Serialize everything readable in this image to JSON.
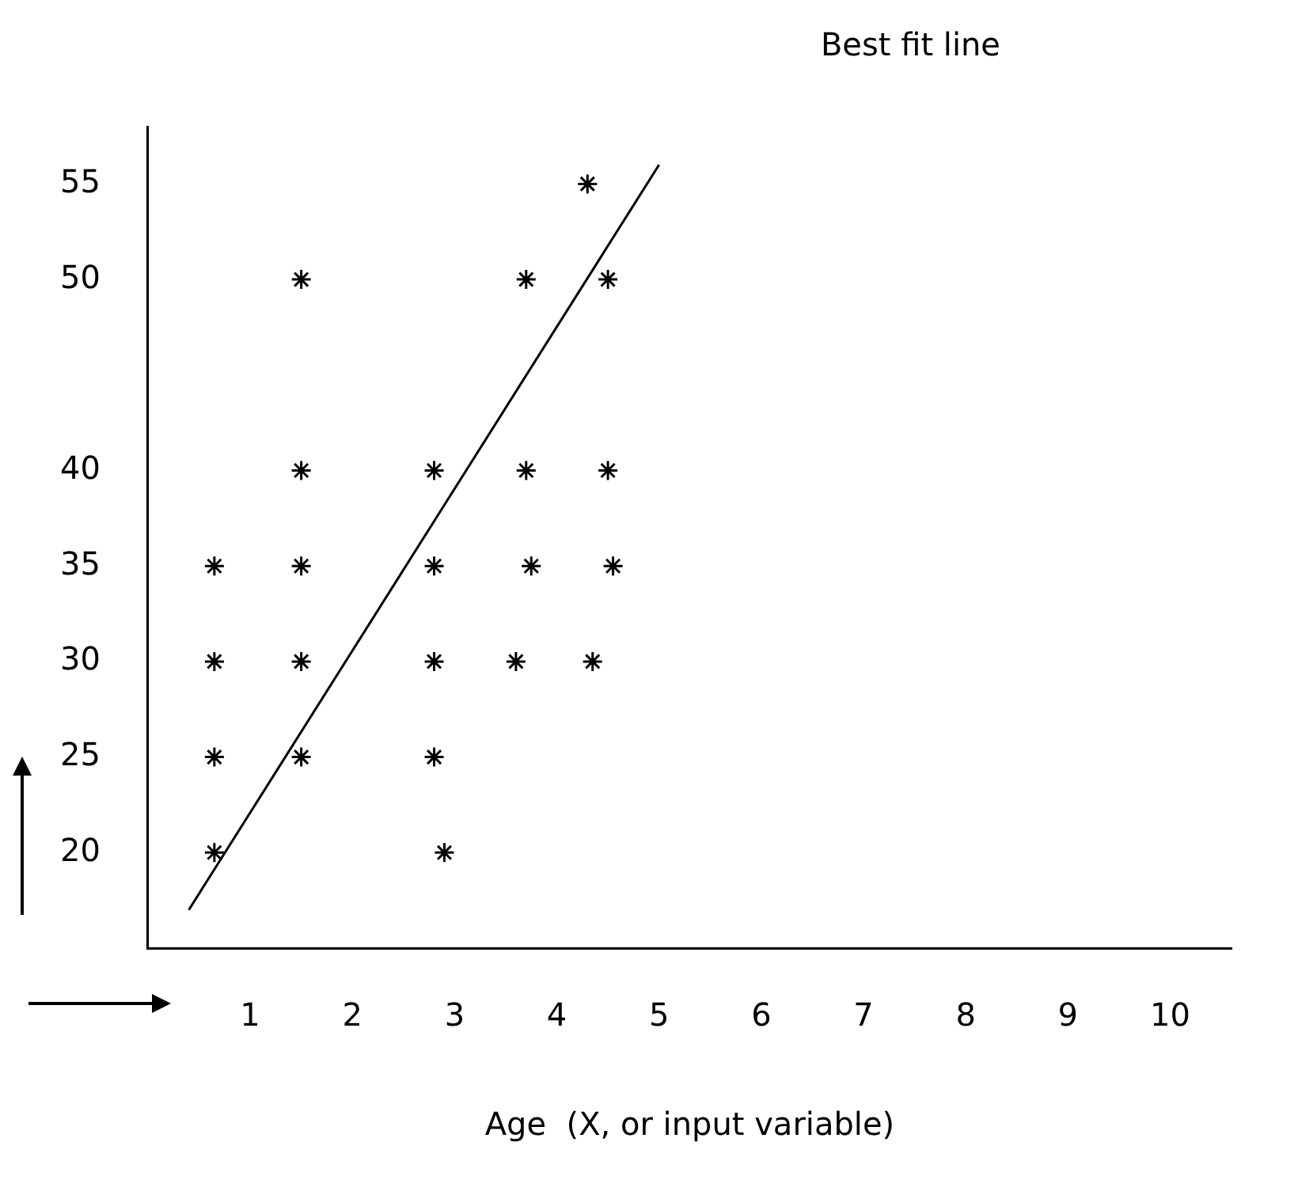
{
  "chart_data": {
    "type": "scatter",
    "annotations": [
      "Best fit line"
    ],
    "xlabel": "Age  (X, or input variable)",
    "series": [
      {
        "type": "scatter",
        "color": "#000000",
        "x": [
          4.3,
          1.5,
          3.7,
          4.5,
          1.5,
          2.8,
          3.7,
          4.5,
          0.65,
          1.5,
          2.8,
          3.75,
          4.55,
          0.65,
          1.5,
          2.8,
          3.6,
          4.35,
          0.65,
          1.5,
          2.8,
          0.65,
          2.9
        ],
        "values": [
          55,
          50,
          50,
          50,
          40,
          40,
          40,
          40,
          35,
          35,
          35,
          35,
          35,
          30,
          30,
          30,
          30,
          30,
          25,
          25,
          25,
          20,
          20
        ]
      },
      {
        "type": "line",
        "color": "#000000",
        "x": [
          0.4,
          5.0
        ],
        "values": [
          17,
          56
        ],
        "marker": "none"
      }
    ],
    "xlim": [
      0,
      10.6
    ],
    "xticks": [
      1,
      2,
      3,
      4,
      5,
      6,
      7,
      8,
      9,
      10
    ],
    "ylim": [
      15,
      58
    ],
    "yticks": [
      20,
      25,
      30,
      35,
      40,
      50,
      55
    ],
    "grid": false,
    "legend": false,
    "marker": "cross"
  }
}
